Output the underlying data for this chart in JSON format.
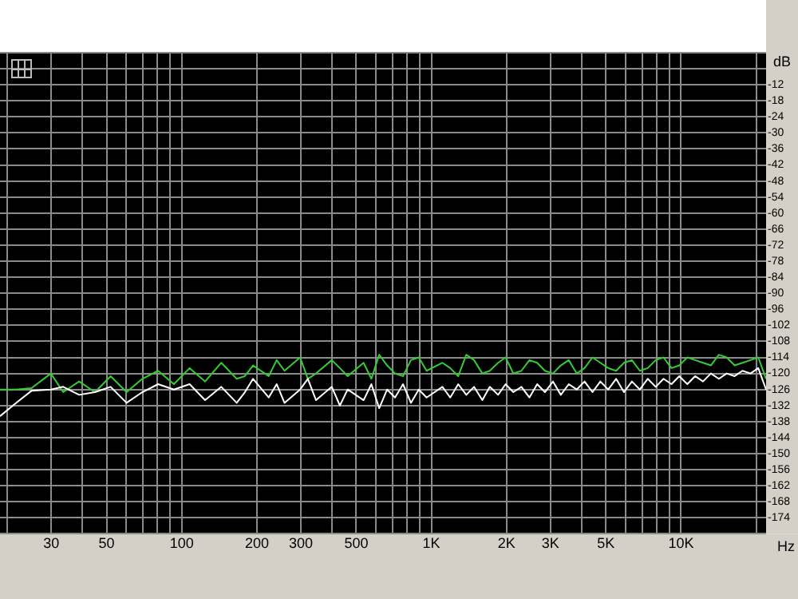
{
  "chart_data": {
    "type": "line",
    "xlabel": "Hz",
    "ylabel": "dB",
    "log": "x",
    "grid": true,
    "marker": "none",
    "line_style": "solid",
    "xlim": [
      18.7,
      21920
    ],
    "ylim": [
      -180,
      0
    ],
    "xticks": [
      {
        "value": 20,
        "label": null
      },
      30,
      {
        "value": 40,
        "label": null
      },
      50,
      {
        "value": 60,
        "label": null
      },
      {
        "value": 70,
        "label": null
      },
      {
        "value": 80,
        "label": null
      },
      {
        "value": 90,
        "label": null
      },
      100,
      200,
      300,
      {
        "value": 400,
        "label": null
      },
      500,
      {
        "value": 600,
        "label": null
      },
      {
        "value": 700,
        "label": null
      },
      {
        "value": 800,
        "label": null
      },
      {
        "value": 900,
        "label": null
      },
      {
        "value": 1000,
        "label": "1K"
      },
      {
        "value": 2000,
        "label": "2K"
      },
      {
        "value": 3000,
        "label": "3K"
      },
      {
        "value": 4000,
        "label": null
      },
      {
        "value": 5000,
        "label": "5K"
      },
      {
        "value": 6000,
        "label": null
      },
      {
        "value": 7000,
        "label": null
      },
      {
        "value": 8000,
        "label": null
      },
      {
        "value": 9000,
        "label": null
      },
      {
        "value": 10000,
        "label": "10K"
      },
      {
        "value": 20000,
        "label": null
      }
    ],
    "yticks": [
      {
        "value": 0,
        "label": null
      },
      {
        "value": -6,
        "label": null
      },
      -12,
      -18,
      -24,
      -30,
      -36,
      -42,
      -48,
      -54,
      -60,
      -66,
      -72,
      -78,
      -84,
      -90,
      -96,
      -102,
      -108,
      -114,
      -120,
      -126,
      -132,
      -138,
      -144,
      -150,
      -156,
      -162,
      -168,
      -174,
      {
        "value": -180,
        "label": null
      }
    ],
    "series": [
      {
        "color": "#ffffff",
        "x": [
          18.7,
          21.7,
          25,
          29.9,
          33.5,
          38.8,
          44.9,
          51.9,
          60.1,
          69.5,
          80.4,
          93,
          107.5,
          124,
          144,
          166,
          179,
          193,
          223,
          240,
          258,
          298,
          320,
          345,
          399,
          430,
          462,
          535,
          575,
          618,
          665,
          715,
          770,
          828,
          890,
          957,
          1107,
          1190,
          1281,
          1380,
          1482,
          1600,
          1714,
          1850,
          1983,
          2130,
          2294,
          2470,
          2654,
          2850,
          3070,
          3300,
          3551,
          3820,
          4108,
          4420,
          4752,
          5110,
          5497,
          5910,
          6359,
          6840,
          7356,
          7920,
          8510,
          9160,
          9844,
          10600,
          11388,
          12250,
          13173,
          14180,
          15239,
          16400,
          17629,
          19000,
          20393,
          21920
        ],
        "values": [
          -136,
          -131,
          -126.5,
          -126,
          -125,
          -128,
          -127,
          -125,
          -131,
          -127,
          -124,
          -126,
          -124,
          -130,
          -125,
          -131,
          -127,
          -122,
          -129,
          -124,
          -131,
          -126,
          -122,
          -130,
          -125,
          -132,
          -126,
          -130,
          -124,
          -133,
          -126,
          -129,
          -124,
          -131,
          -126,
          -129,
          -125,
          -129,
          -124,
          -128,
          -125,
          -130,
          -125,
          -128,
          -124,
          -127,
          -125,
          -129,
          -124,
          -127,
          -123,
          -128,
          -124,
          -126,
          -123,
          -127,
          -123,
          -126,
          -122,
          -127,
          -123,
          -126,
          -122,
          -125,
          -122,
          -124,
          -121,
          -124,
          -121,
          -123,
          -120,
          -122,
          -120,
          -121,
          -119,
          -120,
          -118,
          -126
        ]
      },
      {
        "color": "#33cc33",
        "x": [
          18.7,
          21.7,
          25,
          29.9,
          33.5,
          38.8,
          44.9,
          51.9,
          60.1,
          69.5,
          80.4,
          93,
          107.5,
          124,
          144,
          166,
          179,
          193,
          223,
          240,
          258,
          298,
          320,
          345,
          399,
          430,
          462,
          535,
          575,
          618,
          665,
          715,
          770,
          828,
          890,
          957,
          1107,
          1190,
          1281,
          1380,
          1482,
          1600,
          1714,
          1850,
          1983,
          2130,
          2294,
          2470,
          2654,
          2850,
          3070,
          3300,
          3551,
          3820,
          4108,
          4420,
          4752,
          5110,
          5497,
          5910,
          6359,
          6840,
          7356,
          7920,
          8510,
          9160,
          9844,
          10600,
          11388,
          12250,
          13173,
          14180,
          15239,
          16400,
          17629,
          19000,
          20393,
          21920
        ],
        "values": [
          -126,
          -126,
          -125.5,
          -120,
          -127,
          -123,
          -127,
          -121,
          -127,
          -122,
          -119,
          -124,
          -118,
          -123,
          -116,
          -122,
          -121,
          -117,
          -121,
          -115,
          -119,
          -114,
          -122,
          -120,
          -115,
          -118,
          -121,
          -116,
          -122,
          -113,
          -117,
          -120,
          -121,
          -115,
          -114,
          -119,
          -116,
          -118,
          -121,
          -113,
          -115,
          -120,
          -119,
          -116,
          -114,
          -120,
          -119,
          -115,
          -116,
          -119,
          -120,
          -117,
          -115,
          -120,
          -118,
          -114,
          -116,
          -118,
          -119,
          -116,
          -115,
          -119,
          -118,
          -115,
          -114,
          -118,
          -117,
          -114,
          -115,
          -116,
          -117,
          -113,
          -114,
          -117,
          -116,
          -115,
          -114,
          -122
        ]
      }
    ]
  }
}
